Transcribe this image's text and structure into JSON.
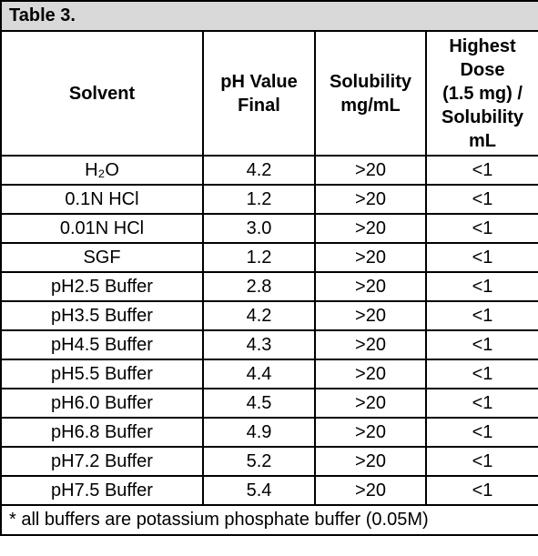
{
  "title": "Table 3.",
  "table": {
    "header": [
      "Solvent",
      "pH Value\nFinal",
      "Solubility\nmg/mL",
      "Highest\nDose\n(1.5 mg) /\nSolubility\nmL"
    ],
    "rows": [
      [
        "H₂O",
        "4.2",
        ">20",
        "<1"
      ],
      [
        "0.1N HCl",
        "1.2",
        ">20",
        "<1"
      ],
      [
        "0.01N HCl",
        "3.0",
        ">20",
        "<1"
      ],
      [
        "SGF",
        "1.2",
        ">20",
        "<1"
      ],
      [
        "pH2.5 Buffer",
        "2.8",
        ">20",
        "<1"
      ],
      [
        "pH3.5 Buffer",
        "4.2",
        ">20",
        "<1"
      ],
      [
        "pH4.5 Buffer",
        "4.3",
        ">20",
        "<1"
      ],
      [
        "pH5.5 Buffer",
        "4.4",
        ">20",
        "<1"
      ],
      [
        "pH6.0 Buffer",
        "4.5",
        ">20",
        "<1"
      ],
      [
        "pH6.8 Buffer",
        "4.9",
        ">20",
        "<1"
      ],
      [
        "pH7.2 Buffer",
        "5.2",
        ">20",
        "<1"
      ],
      [
        "pH7.5 Buffer",
        "5.4",
        ">20",
        "<1"
      ]
    ]
  },
  "footnote": "* all buffers are potassium phosphate buffer (0.05M)"
}
